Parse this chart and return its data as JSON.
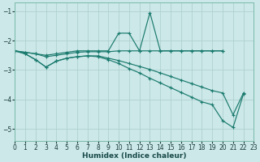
{
  "xlabel": "Humidex (Indice chaleur)",
  "bg_color": "#cce8e8",
  "line_color": "#1a7a6e",
  "grid_color": "#aacccc",
  "xlim": [
    0,
    23
  ],
  "ylim": [
    -5.4,
    -0.7
  ],
  "yticks": [
    -5,
    -4,
    -3,
    -2,
    -1
  ],
  "xticks": [
    0,
    1,
    2,
    3,
    4,
    5,
    6,
    7,
    8,
    9,
    10,
    11,
    12,
    13,
    14,
    15,
    16,
    17,
    18,
    19,
    20,
    21,
    22,
    23
  ],
  "lines": [
    {
      "x": [
        0,
        1,
        2,
        3,
        4,
        5,
        6,
        7,
        8,
        9,
        10,
        11,
        12,
        13,
        14,
        15,
        16,
        17,
        18,
        19,
        20
      ],
      "y": [
        -2.35,
        -2.4,
        -2.45,
        -2.5,
        -2.45,
        -2.4,
        -2.35,
        -2.35,
        -2.35,
        -2.35,
        -1.75,
        -1.75,
        -2.35,
        -1.05,
        -2.35,
        -2.35,
        -2.35,
        -2.35,
        -2.35,
        -2.35,
        -2.35
      ]
    },
    {
      "x": [
        0,
        1,
        2,
        3,
        4,
        5,
        6,
        7,
        8,
        9,
        10,
        11,
        12,
        13,
        14,
        15,
        16,
        17,
        18,
        19,
        20
      ],
      "y": [
        -2.35,
        -2.4,
        -2.45,
        -2.55,
        -2.5,
        -2.45,
        -2.4,
        -2.38,
        -2.38,
        -2.38,
        -2.35,
        -2.35,
        -2.35,
        -2.35,
        -2.35,
        -2.35,
        -2.35,
        -2.35,
        -2.35,
        -2.35,
        -2.35
      ]
    },
    {
      "x": [
        0,
        1,
        2,
        3,
        4,
        5,
        6,
        7,
        8,
        9,
        10,
        11,
        12,
        13,
        14,
        15,
        16,
        17,
        18,
        19,
        20,
        21,
        22
      ],
      "y": [
        -2.35,
        -2.45,
        -2.65,
        -2.9,
        -2.7,
        -2.6,
        -2.55,
        -2.52,
        -2.52,
        -2.6,
        -2.68,
        -2.78,
        -2.88,
        -2.98,
        -3.1,
        -3.22,
        -3.34,
        -3.46,
        -3.58,
        -3.7,
        -3.78,
        -4.52,
        -3.78
      ]
    },
    {
      "x": [
        0,
        1,
        2,
        3,
        4,
        5,
        6,
        7,
        8,
        9,
        10,
        11,
        12,
        13,
        14,
        15,
        16,
        17,
        18,
        19,
        20,
        21,
        22
      ],
      "y": [
        -2.35,
        -2.45,
        -2.65,
        -2.9,
        -2.7,
        -2.6,
        -2.55,
        -2.52,
        -2.55,
        -2.65,
        -2.78,
        -2.95,
        -3.1,
        -3.28,
        -3.44,
        -3.6,
        -3.76,
        -3.92,
        -4.08,
        -4.18,
        -4.72,
        -4.95,
        -3.82
      ]
    }
  ]
}
